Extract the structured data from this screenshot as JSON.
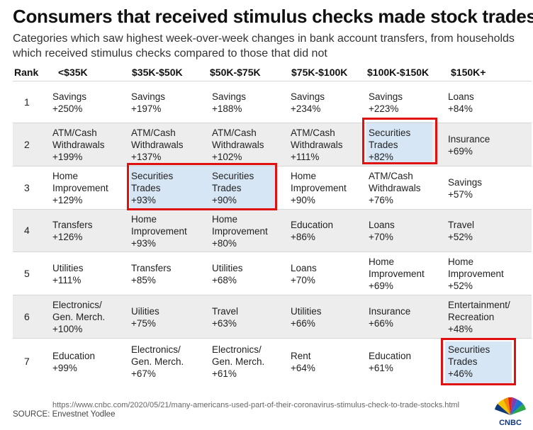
{
  "title": "Consumers that received stimulus checks made stock trades",
  "subtitle": "Categories which saw highest week-over-week changes in bank account transfers, from households which received stimulus checks compared to those that did not",
  "source": "SOURCE: Envestnet Yodlee",
  "url": "https://www.cnbc.com/2020/05/21/many-americans-used-part-of-their-coronavirus-stimulus-check-to-trade-stocks.html",
  "logo_text": "CNBC",
  "colors": {
    "highlight_border": "#e01010",
    "highlight_fill": "#d7e6f5",
    "shaded_row": "#ededed"
  },
  "chart_data": {
    "type": "table",
    "title": "Consumers that received stimulus checks made stock trades",
    "rank_label": "Rank",
    "columns": [
      "<$35K",
      "$35K-$50K",
      "$50K-$75K",
      "$75K-$100K",
      "$100K-$150K",
      "$150K+"
    ],
    "rows": [
      {
        "rank": "1",
        "cells": [
          "Savings\n+250%",
          "Savings\n+197%",
          "Savings\n+188%",
          "Savings\n+234%",
          "Savings\n+223%",
          "Loans\n+84%"
        ]
      },
      {
        "rank": "2",
        "cells": [
          "ATM/Cash\nWithdrawals\n+199%",
          "ATM/Cash\nWithdrawals\n+137%",
          "ATM/Cash\nWithdrawals\n+102%",
          "ATM/Cash\nWithdrawals\n+111%",
          "Securities\nTrades\n+82%",
          "Insurance\n+69%"
        ]
      },
      {
        "rank": "3",
        "cells": [
          "Home\nImprovement\n+129%",
          "Securities\nTrades\n+93%",
          "Securities\nTrades\n+90%",
          "Home\nImprovement\n+90%",
          "ATM/Cash\nWithdrawals\n+76%",
          "Savings\n+57%"
        ]
      },
      {
        "rank": "4",
        "cells": [
          "Transfers\n+126%",
          "Home\nImprovement\n+93%",
          "Home\nImprovement\n+80%",
          "Education\n+86%",
          "Loans\n+70%",
          "Travel\n+52%"
        ]
      },
      {
        "rank": "5",
        "cells": [
          "Utilities\n+111%",
          "Transfers\n+85%",
          "Utilities\n+68%",
          "Loans\n+70%",
          "Home\nImprovement\n+69%",
          "Home\nImprovement\n+52%"
        ]
      },
      {
        "rank": "6",
        "cells": [
          "Electronics/\nGen. Merch.\n+100%",
          "Uilities\n+75%",
          "Travel\n+63%",
          "Utilities\n+66%",
          "Insurance\n+66%",
          "Entertainment/\nRecreation\n+48%"
        ]
      },
      {
        "rank": "7",
        "cells": [
          "Education\n+99%",
          "Electronics/\nGen. Merch.\n+67%",
          "Electronics/\nGen. Merch.\n+61%",
          "Rent\n+64%",
          "Education\n+61%",
          "Securities\nTrades\n+46%"
        ]
      }
    ],
    "highlighted": [
      {
        "rank": "2",
        "column": "$100K-$150K",
        "label": "Securities Trades"
      },
      {
        "rank": "3",
        "column": "$35K-$50K",
        "label": "Securities Trades"
      },
      {
        "rank": "3",
        "column": "$50K-$75K",
        "label": "Securities Trades"
      },
      {
        "rank": "7",
        "column": "$150K+",
        "label": "Securities Trades"
      }
    ]
  }
}
